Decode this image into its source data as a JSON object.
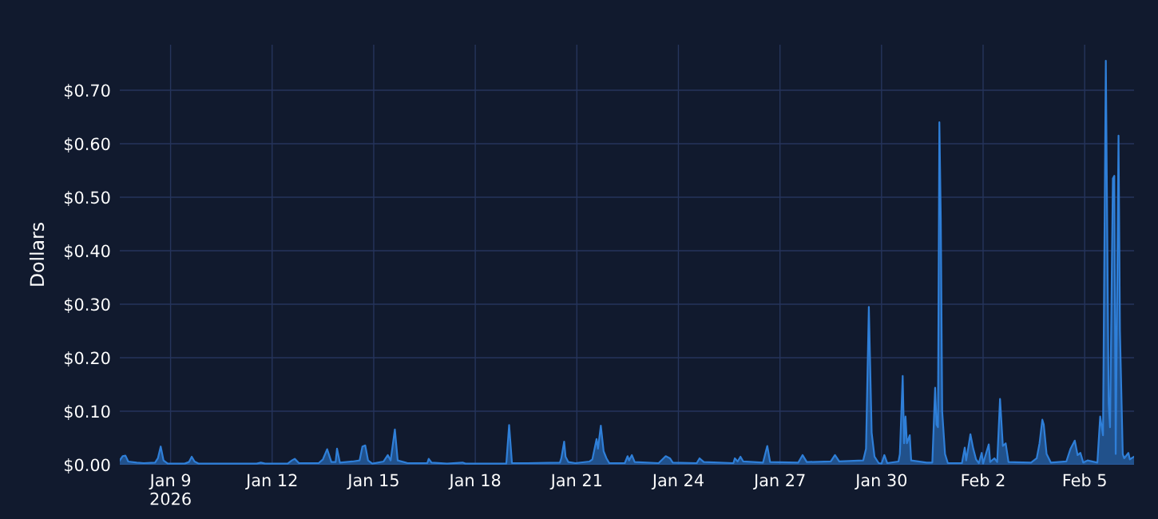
{
  "chart_data": {
    "type": "area",
    "ylabel": "Dollars",
    "grid": true,
    "xlim": [
      "2026-01-07T12:00",
      "2026-02-06T11:00"
    ],
    "xticks": [
      {
        "value": "2026-01-09",
        "label": "Jan 9\n2026"
      },
      {
        "value": "2026-01-12",
        "label": "Jan 12"
      },
      {
        "value": "2026-01-15",
        "label": "Jan 15"
      },
      {
        "value": "2026-01-18",
        "label": "Jan 18"
      },
      {
        "value": "2026-01-21",
        "label": "Jan 21"
      },
      {
        "value": "2026-01-24",
        "label": "Jan 24"
      },
      {
        "value": "2026-01-27",
        "label": "Jan 27"
      },
      {
        "value": "2026-01-30",
        "label": "Jan 30"
      },
      {
        "value": "2026-02-02",
        "label": "Feb 2"
      },
      {
        "value": "2026-02-05",
        "label": "Feb 5"
      }
    ],
    "ylim": [
      0,
      0.785
    ],
    "yticks": [
      {
        "value": 0,
        "label": "$0.00"
      },
      {
        "value": 0.1,
        "label": "$0.10"
      },
      {
        "value": 0.2,
        "label": "$0.20"
      },
      {
        "value": 0.3,
        "label": "$0.30"
      },
      {
        "value": 0.4,
        "label": "$0.40"
      },
      {
        "value": 0.5,
        "label": "$0.50"
      },
      {
        "value": 0.6,
        "label": "$0.60"
      },
      {
        "value": 0.7,
        "label": "$0.70"
      }
    ],
    "x": [
      "2026-01-07T12:00",
      "2026-01-07T14:00",
      "2026-01-07T16:00",
      "2026-01-07T18:00",
      "2026-01-08T00:00",
      "2026-01-08T05:00",
      "2026-01-08T13:00",
      "2026-01-08T15:00",
      "2026-01-08T17:00",
      "2026-01-08T19:00",
      "2026-01-08T22:00",
      "2026-01-09T10:00",
      "2026-01-09T13:00",
      "2026-01-09T15:00",
      "2026-01-09T17:00",
      "2026-01-09T20:00",
      "2026-01-11T13:00",
      "2026-01-11T16:00",
      "2026-01-11T19:00",
      "2026-01-12T11:00",
      "2026-01-12T14:00",
      "2026-01-12T16:00",
      "2026-01-12T19:00",
      "2026-01-13T09:00",
      "2026-01-13T12:00",
      "2026-01-13T15:00",
      "2026-01-13T18:00",
      "2026-01-13T21:00",
      "2026-01-13T22:00",
      "2026-01-14T00:00",
      "2026-01-14T09:00",
      "2026-01-14T14:00",
      "2026-01-14T16:00",
      "2026-01-14T18:00",
      "2026-01-14T20:00",
      "2026-01-14T23:00",
      "2026-01-15T07:00",
      "2026-01-15T10:00",
      "2026-01-15T12:00",
      "2026-01-15T15:00",
      "2026-01-15T17:00",
      "2026-01-16T00:00",
      "2026-01-16T14:00",
      "2026-01-16T15:00",
      "2026-01-16T17:00",
      "2026-01-17T04:00",
      "2026-01-17T15:00",
      "2026-01-17T17:00",
      "2026-01-18T22:00",
      "2026-01-19T00:00",
      "2026-01-19T02:00",
      "2026-01-19T13:00",
      "2026-01-20T12:00",
      "2026-01-20T13:00",
      "2026-01-20T15:00",
      "2026-01-20T16:00",
      "2026-01-20T18:00",
      "2026-01-20T23:00",
      "2026-01-21T09:00",
      "2026-01-21T11:00",
      "2026-01-21T14:00",
      "2026-01-21T15:00",
      "2026-01-21T17:00",
      "2026-01-21T19:00",
      "2026-01-21T21:00",
      "2026-01-21T23:00",
      "2026-01-22T10:00",
      "2026-01-22T12:00",
      "2026-01-22T13:00",
      "2026-01-22T15:00",
      "2026-01-22T17:00",
      "2026-01-23T10:00",
      "2026-01-23T15:00",
      "2026-01-23T18:00",
      "2026-01-23T20:00",
      "2026-01-24T13:00",
      "2026-01-24T15:00",
      "2026-01-24T18:00",
      "2026-01-25T15:00",
      "2026-01-25T16:00",
      "2026-01-25T18:00",
      "2026-01-25T20:00",
      "2026-01-25T22:00",
      "2026-01-26T12:00",
      "2026-01-26T15:00",
      "2026-01-26T17:00",
      "2026-01-27T13:00",
      "2026-01-27T16:00",
      "2026-01-27T19:00",
      "2026-01-28T12:00",
      "2026-01-28T15:00",
      "2026-01-28T18:00",
      "2026-01-29T11:00",
      "2026-01-29T13:00",
      "2026-01-29T15:00",
      "2026-01-29T17:00",
      "2026-01-29T19:00",
      "2026-01-29T22:00",
      "2026-01-30T00:00",
      "2026-01-30T02:00",
      "2026-01-30T04:00",
      "2026-01-30T12:00",
      "2026-01-30T13:00",
      "2026-01-30T15:00",
      "2026-01-30T16:00",
      "2026-01-30T17:00",
      "2026-01-30T18:00",
      "2026-01-30T20:00",
      "2026-01-30T21:00",
      "2026-01-31T08:00",
      "2026-01-31T12:00",
      "2026-01-31T14:00",
      "2026-01-31T15:00",
      "2026-01-31T16:00",
      "2026-01-31T17:00",
      "2026-01-31T18:00",
      "2026-01-31T19:00",
      "2026-01-31T21:00",
      "2026-01-31T23:00",
      "2026-02-01T09:00",
      "2026-02-01T11:00",
      "2026-02-01T12:00",
      "2026-02-01T14:00",
      "2026-02-01T15:00",
      "2026-02-01T17:00",
      "2026-02-01T19:00",
      "2026-02-01T21:00",
      "2026-02-01T23:00",
      "2026-02-02T00:00",
      "2026-02-02T04:00",
      "2026-02-02T05:00",
      "2026-02-02T08:00",
      "2026-02-02T10:00",
      "2026-02-02T12:00",
      "2026-02-02T14:00",
      "2026-02-02T16:00",
      "2026-02-02T18:00",
      "2026-02-03T10:00",
      "2026-02-03T14:00",
      "2026-02-03T16:00",
      "2026-02-03T18:00",
      "2026-02-03T19:00",
      "2026-02-03T21:00",
      "2026-02-04T00:00",
      "2026-02-04T11:00",
      "2026-02-04T14:00",
      "2026-02-04T17:00",
      "2026-02-04T19:00",
      "2026-02-04T21:00",
      "2026-02-04T23:00",
      "2026-02-05T02:00",
      "2026-02-05T09:00",
      "2026-02-05T11:00",
      "2026-02-05T13:00",
      "2026-02-05T15:00",
      "2026-02-05T17:00",
      "2026-02-05T18:00",
      "2026-02-05T20:00",
      "2026-02-05T21:00",
      "2026-02-05T22:00",
      "2026-02-06T00:00",
      "2026-02-06T01:00",
      "2026-02-06T03:00",
      "2026-02-06T04:00",
      "2026-02-06T07:00",
      "2026-02-06T08:00",
      "2026-02-06T11:00"
    ],
    "series": [
      {
        "color": "#2f7fd8",
        "values": [
          0.008,
          0.016,
          0.017,
          0.006,
          0.004,
          0.003,
          0.004,
          0.012,
          0.034,
          0.008,
          0.002,
          0.002,
          0.005,
          0.015,
          0.006,
          0.002,
          0.002,
          0.004,
          0.002,
          0.002,
          0.008,
          0.011,
          0.003,
          0.003,
          0.01,
          0.029,
          0.005,
          0.005,
          0.03,
          0.004,
          0.006,
          0.008,
          0.034,
          0.036,
          0.008,
          0.002,
          0.006,
          0.018,
          0.008,
          0.066,
          0.008,
          0.003,
          0.003,
          0.011,
          0.004,
          0.002,
          0.004,
          0.002,
          0.002,
          0.074,
          0.003,
          0.003,
          0.004,
          0.012,
          0.043,
          0.015,
          0.005,
          0.003,
          0.006,
          0.01,
          0.048,
          0.03,
          0.073,
          0.025,
          0.012,
          0.003,
          0.003,
          0.016,
          0.008,
          0.018,
          0.005,
          0.003,
          0.016,
          0.012,
          0.004,
          0.003,
          0.012,
          0.005,
          0.003,
          0.012,
          0.006,
          0.015,
          0.006,
          0.004,
          0.035,
          0.005,
          0.004,
          0.018,
          0.005,
          0.006,
          0.018,
          0.006,
          0.008,
          0.03,
          0.295,
          0.06,
          0.015,
          0.003,
          0.002,
          0.018,
          0.003,
          0.006,
          0.02,
          0.166,
          0.04,
          0.09,
          0.04,
          0.055,
          0.008,
          0.004,
          0.004,
          0.144,
          0.075,
          0.07,
          0.64,
          0.46,
          0.1,
          0.02,
          0.003,
          0.003,
          0.032,
          0.008,
          0.04,
          0.057,
          0.03,
          0.01,
          0.003,
          0.022,
          0.002,
          0.038,
          0.005,
          0.012,
          0.005,
          0.123,
          0.035,
          0.04,
          0.005,
          0.004,
          0.012,
          0.04,
          0.084,
          0.075,
          0.02,
          0.004,
          0.006,
          0.03,
          0.045,
          0.018,
          0.022,
          0.004,
          0.008,
          0.004,
          0.09,
          0.055,
          0.755,
          0.115,
          0.07,
          0.535,
          0.54,
          0.02,
          0.615,
          0.25,
          0.02,
          0.012,
          0.022,
          0.01,
          0.015
        ]
      }
    ]
  }
}
